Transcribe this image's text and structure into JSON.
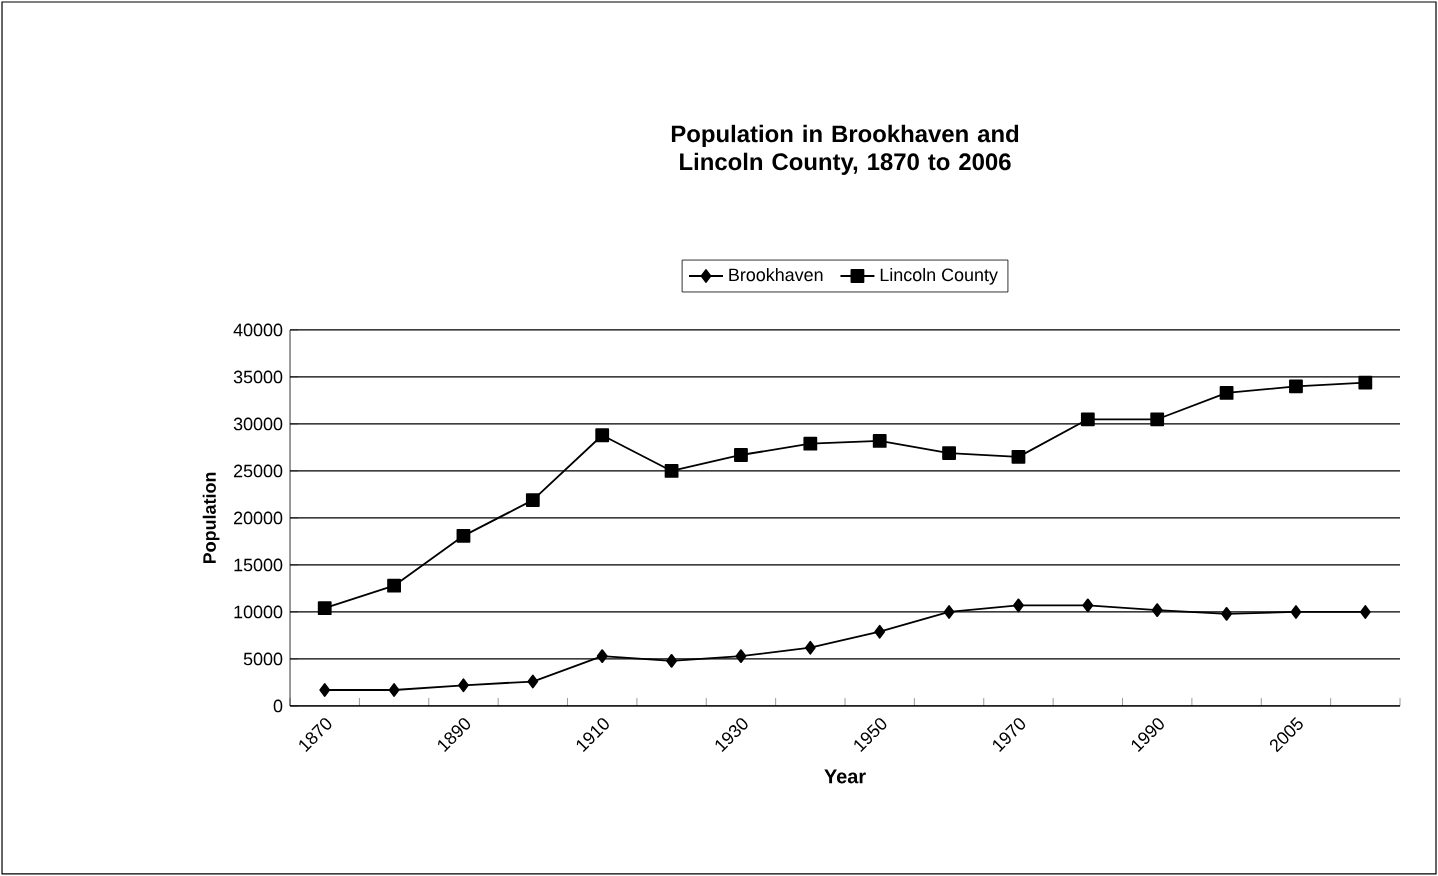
{
  "chart_data": {
    "type": "line",
    "title": "Population in Brookhaven and Lincoln County, 1870 to 2006",
    "xlabel": "Year",
    "ylabel": "Population",
    "categories": [
      "1870",
      null,
      "1890",
      null,
      "1910",
      null,
      "1930",
      null,
      "1950",
      null,
      "1970",
      null,
      "1990",
      null,
      "2005",
      null
    ],
    "series": [
      {
        "name": "Brookhaven",
        "color": "#000000",
        "marker": "diamond",
        "values": [
          1700,
          1700,
          2200,
          2600,
          5300,
          4800,
          5300,
          6200,
          7900,
          10000,
          10700,
          10700,
          10200,
          9800,
          10000,
          10000
        ]
      },
      {
        "name": "Lincoln County",
        "color": "#000000",
        "marker": "square",
        "values": [
          10400,
          12800,
          18100,
          21900,
          28800,
          25000,
          26700,
          27900,
          28200,
          26900,
          26500,
          30500,
          30500,
          33300,
          34000,
          34400
        ]
      }
    ],
    "ylim": [
      0,
      40000
    ],
    "yticks": [
      0,
      5000,
      10000,
      15000,
      20000,
      25000,
      30000,
      35000,
      40000
    ],
    "grid": "y",
    "legend": "top",
    "line_style": "solid"
  }
}
